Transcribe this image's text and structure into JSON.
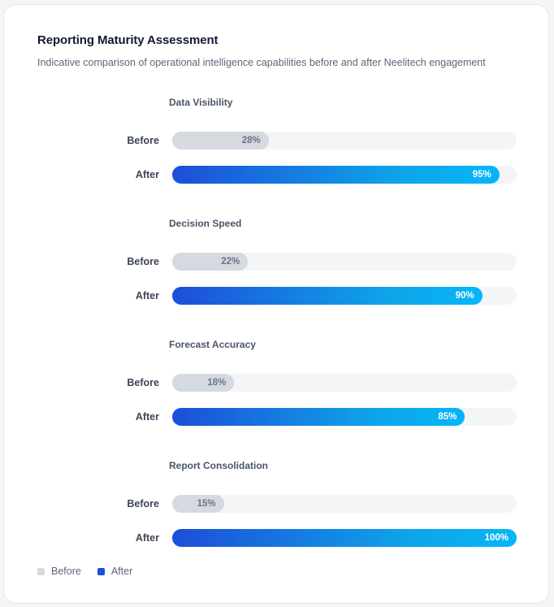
{
  "header": {
    "title": "Reporting Maturity Assessment",
    "subtitle": "Indicative comparison of operational intelligence capabilities before and after Neelitech engagement"
  },
  "colors": {
    "before": "#d5d9e0",
    "after_start": "#1d4ed8",
    "after_end": "#06b6f8"
  },
  "chart_data": {
    "type": "bar",
    "orientation": "horizontal",
    "title": "Reporting Maturity Assessment",
    "subtitle": "Indicative comparison of operational intelligence capabilities before and after Neelitech engagement",
    "categories": [
      "Data Visibility",
      "Decision Speed",
      "Forecast Accuracy",
      "Report Consolidation"
    ],
    "series": [
      {
        "name": "Before",
        "values": [
          28,
          22,
          18,
          15
        ],
        "labels": [
          "28%",
          "22%",
          "18%",
          "15%"
        ]
      },
      {
        "name": "After",
        "values": [
          95,
          90,
          85,
          100
        ],
        "labels": [
          "95%",
          "90%",
          "85%",
          "100%"
        ]
      }
    ],
    "xlim": [
      0,
      100
    ],
    "grid": false,
    "legend": "bottom-left"
  },
  "legend": {
    "before_label": "Before",
    "after_label": "After"
  }
}
